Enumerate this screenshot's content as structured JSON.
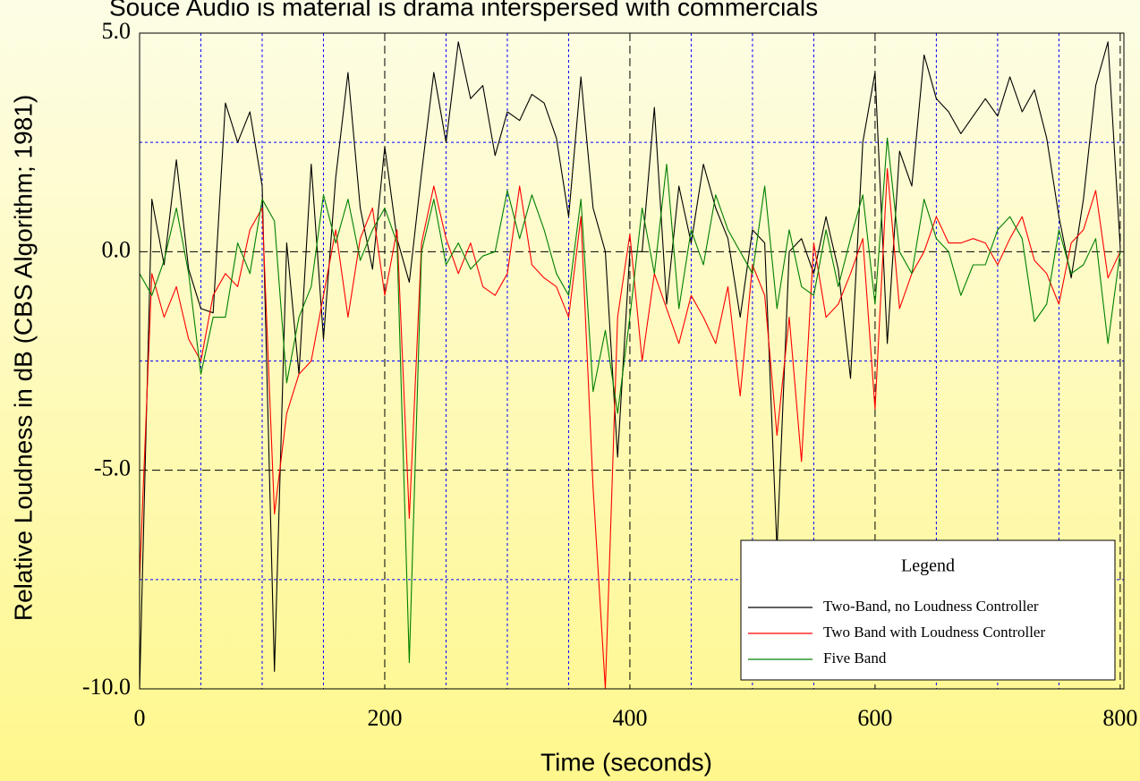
{
  "chart_data": {
    "type": "line",
    "title": "Souce Audio is material is drama interspersed with commercials",
    "xlabel": "Time (seconds)",
    "ylabel": "Relative Loudness in dB (CBS Algorithm; 1981)",
    "legend_title": "Legend",
    "legend_position": "lower right",
    "grid": true,
    "xlim": [
      0,
      803
    ],
    "ylim": [
      -10,
      5
    ],
    "xticks": [
      0,
      200,
      400,
      600,
      800
    ],
    "yticks": [
      {
        "value": -10,
        "label": "-10.0"
      },
      {
        "value": -5,
        "label": "-5.0"
      },
      {
        "value": 0,
        "label": "0.0"
      },
      {
        "value": 5,
        "label": "5.0"
      }
    ],
    "xminorticks": [
      50,
      100,
      150,
      250,
      300,
      350,
      450,
      500,
      550,
      650,
      700,
      750
    ],
    "yminorticks": [
      -7.5,
      -2.5,
      2.5
    ],
    "x": [
      0,
      10,
      20,
      30,
      40,
      50,
      60,
      70,
      80,
      90,
      100,
      110,
      120,
      130,
      140,
      150,
      160,
      170,
      180,
      190,
      200,
      210,
      220,
      230,
      240,
      250,
      260,
      270,
      280,
      290,
      300,
      310,
      320,
      330,
      340,
      350,
      360,
      370,
      380,
      390,
      400,
      410,
      420,
      430,
      440,
      450,
      460,
      470,
      480,
      490,
      500,
      510,
      520,
      530,
      540,
      550,
      560,
      570,
      580,
      590,
      600,
      610,
      620,
      630,
      640,
      650,
      660,
      670,
      680,
      690,
      700,
      710,
      720,
      730,
      740,
      750,
      760,
      770,
      780,
      790,
      800
    ],
    "series": [
      {
        "name": "Two-Band, no Loudness Controller",
        "color": "#000000",
        "values": [
          -10,
          1.2,
          -0.3,
          2.1,
          -0.4,
          -1.3,
          -1.4,
          3.4,
          2.5,
          3.2,
          1.5,
          -9.6,
          0.2,
          -2.8,
          2.0,
          -2.0,
          1.7,
          4.1,
          1.0,
          -0.4,
          2.4,
          0.3,
          -0.7,
          1.8,
          4.1,
          2.5,
          4.8,
          3.5,
          3.8,
          2.2,
          3.2,
          3.0,
          3.6,
          3.4,
          2.6,
          0.8,
          4.0,
          1.0,
          0.0,
          -4.7,
          0.0,
          0.0,
          3.3,
          -1.2,
          1.5,
          0.2,
          2.0,
          1.0,
          0.3,
          -1.5,
          0.5,
          0.2,
          -6.8,
          0.0,
          0.3,
          -0.5,
          0.8,
          -0.4,
          -2.9,
          2.5,
          4.1,
          -2.1,
          2.3,
          1.5,
          4.5,
          3.5,
          3.2,
          2.7,
          3.1,
          3.5,
          3.1,
          4.0,
          3.2,
          3.7,
          2.6,
          0.8,
          -0.6,
          1.2,
          3.8,
          4.8,
          0.1
        ]
      },
      {
        "name": "Two Band with Loudness Controller",
        "color": "#ff0000",
        "values": [
          -7.5,
          -0.5,
          -1.5,
          -0.8,
          -2.0,
          -2.5,
          -1.0,
          -0.5,
          -0.8,
          0.5,
          1.0,
          -6.0,
          -3.7,
          -2.8,
          -2.5,
          -1.0,
          0.5,
          -1.5,
          0.3,
          1.0,
          -1.0,
          0.5,
          -6.1,
          0.2,
          1.5,
          0.3,
          -0.5,
          0.2,
          -0.8,
          -1.0,
          -0.5,
          1.5,
          -0.3,
          -0.6,
          -0.8,
          -1.5,
          0.8,
          -5.4,
          -10,
          -1.5,
          0.4,
          -2.5,
          -0.5,
          -1.3,
          -2.1,
          -1.0,
          -1.5,
          -2.1,
          -0.8,
          -3.3,
          -0.3,
          -1.0,
          -4.2,
          -1.5,
          -4.8,
          0.2,
          -1.5,
          -1.2,
          -0.5,
          0.3,
          -3.6,
          1.9,
          -1.3,
          -0.5,
          0.0,
          0.8,
          0.2,
          0.2,
          0.3,
          0.2,
          -0.3,
          0.3,
          0.8,
          -0.2,
          -0.5,
          -1.2,
          0.2,
          0.5,
          1.4,
          -0.6,
          0.0
        ]
      },
      {
        "name": "Five Band",
        "color": "#008000",
        "values": [
          -0.5,
          -1.0,
          -0.2,
          1.0,
          -0.5,
          -2.8,
          -1.5,
          -1.5,
          0.2,
          -0.5,
          1.2,
          0.7,
          -3.0,
          -1.5,
          -0.8,
          1.3,
          0.2,
          1.2,
          -0.2,
          0.5,
          1.0,
          0.2,
          -9.4,
          0.0,
          1.2,
          -0.3,
          0.2,
          -0.4,
          -0.1,
          0.0,
          1.4,
          0.3,
          1.3,
          0.5,
          -0.5,
          -1.0,
          1.2,
          -3.2,
          -1.8,
          -3.7,
          -1.5,
          1.0,
          -0.5,
          2.0,
          -1.3,
          0.5,
          -0.3,
          1.3,
          0.5,
          0.0,
          -0.5,
          1.5,
          -1.3,
          0.5,
          -0.8,
          -1.0,
          0.5,
          -0.8,
          0.3,
          1.3,
          -1.2,
          2.6,
          0.0,
          -0.5,
          1.2,
          0.3,
          0.0,
          -1.0,
          -0.3,
          -0.3,
          0.5,
          0.8,
          0.3,
          -1.6,
          -1.2,
          0.5,
          -0.5,
          -0.3,
          0.3,
          -2.1,
          0.0
        ]
      }
    ]
  }
}
